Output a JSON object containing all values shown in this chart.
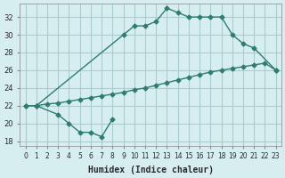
{
  "xlabel": "Humidex (Indice chaleur)",
  "bg_color": "#d6eef0",
  "grid_color": "#aacccc",
  "line_color": "#2e7d6e",
  "curve1_x": [
    0,
    1,
    9,
    10,
    11,
    12,
    13,
    14,
    15,
    16,
    17,
    18,
    19,
    20,
    21,
    23
  ],
  "curve1_y": [
    22,
    22,
    30,
    31,
    31,
    31.5,
    33,
    32.5,
    32,
    32,
    32,
    32,
    30,
    29,
    28.5,
    26
  ],
  "curve2_x": [
    0,
    1,
    2,
    3,
    4,
    5,
    6,
    7,
    8,
    9,
    10,
    11,
    12,
    13,
    14,
    15,
    16,
    17,
    18,
    19,
    20,
    21,
    22,
    23
  ],
  "curve2_y": [
    22,
    22,
    22.2,
    22.3,
    22.5,
    22.7,
    22.9,
    23.1,
    23.3,
    23.5,
    23.8,
    24.0,
    24.3,
    24.6,
    24.9,
    25.2,
    25.5,
    25.8,
    26.0,
    26.2,
    26.4,
    26.6,
    26.8,
    26
  ],
  "curve3_x": [
    1,
    3,
    4,
    5,
    6,
    7,
    8
  ],
  "curve3_y": [
    22,
    21,
    20,
    19,
    19,
    18.5,
    20.5
  ],
  "ylim": [
    17.5,
    33.5
  ],
  "xlim": [
    -0.5,
    23.5
  ],
  "yticks": [
    18,
    20,
    22,
    24,
    26,
    28,
    30,
    32
  ],
  "xticks": [
    0,
    1,
    2,
    3,
    4,
    5,
    6,
    7,
    8,
    9,
    10,
    11,
    12,
    13,
    14,
    15,
    16,
    17,
    18,
    19,
    20,
    21,
    22,
    23
  ]
}
